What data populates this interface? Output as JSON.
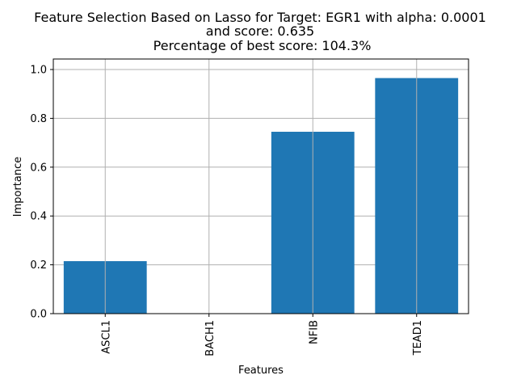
{
  "chart_data": {
    "type": "bar",
    "title_lines": [
      "Feature Selection Based on Lasso for Target: EGR1 with alpha: 0.0001",
      "and score: 0.635",
      " Percentage of best score: 104.3%"
    ],
    "xlabel": "Features",
    "ylabel": "Importance",
    "categories": [
      "ASCL1",
      "BACH1",
      "NFIB",
      "TEAD1"
    ],
    "values": [
      0.215,
      0.0,
      0.745,
      0.965
    ],
    "ylim": [
      0.0,
      1.0
    ],
    "yticks": [
      "0.0",
      "0.2",
      "0.4",
      "0.6",
      "0.8",
      "1.0"
    ],
    "grid": true,
    "bar_color": "#1f77b4",
    "grid_color": "#b0b0b0"
  }
}
